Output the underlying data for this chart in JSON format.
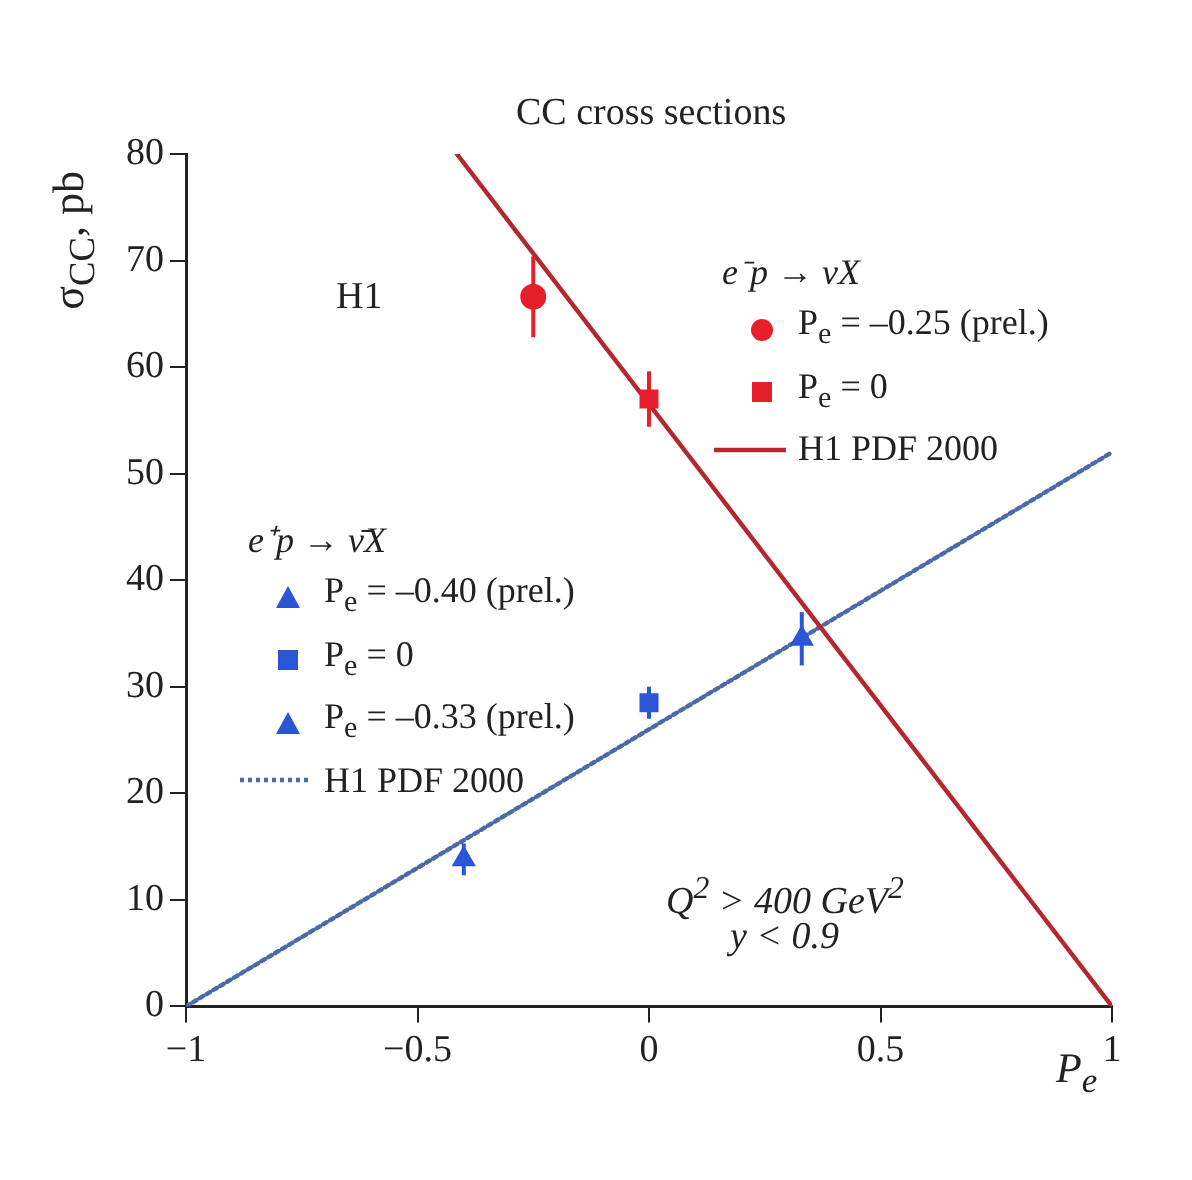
{
  "chart_data": {
    "type": "scatter",
    "title": "CC cross sections",
    "xlabel": "P$_{e}$",
    "ylabel": "σ$_{CC}$, pb",
    "legend_title": [
      "e⁻p → νX",
      "e⁺p → ν̄X"
    ],
    "xlim": [
      -1,
      1
    ],
    "xticks": [
      -1,
      -0.5,
      0,
      0.5,
      1
    ],
    "ylim": [
      0,
      80
    ],
    "yticks": [
      0,
      10,
      20,
      30,
      40,
      50,
      60,
      70,
      80
    ],
    "grid": false,
    "legend": "top right",
    "annotations": [
      "H1",
      "Q$^{2}$ > 400 GeV$^{2}$",
      "y < 0.9"
    ],
    "series": [
      {
        "name": "P$_{e}$ = –0.25 (prel.)",
        "type": "scatter",
        "marker": "circle",
        "color": "#e5202a",
        "x": [
          -0.25
        ],
        "values": [
          66.6
        ],
        "errors": [
          3.8
        ]
      },
      {
        "name": "P$_{e}$ = 0",
        "type": "scatter",
        "marker": "square",
        "color": "#e5202a",
        "x": [
          0
        ],
        "values": [
          57
        ],
        "errors": [
          2.6
        ]
      },
      {
        "name": "H1 PDF 2000",
        "type": "line",
        "marker": "none",
        "line_style": "solid",
        "color": "#b5262e",
        "x": [
          -0.415,
          1
        ],
        "values": [
          80,
          0
        ]
      },
      {
        "name": "P$_{e}$ = –0.40 (prel.)",
        "type": "scatter",
        "marker": "triangle",
        "color": "#2a56d6",
        "x": [
          -0.4
        ],
        "values": [
          13.8
        ],
        "errors": [
          1.5
        ]
      },
      {
        "name": "P$_{e}$ = 0",
        "type": "scatter",
        "marker": "square",
        "color": "#2a56d6",
        "x": [
          0
        ],
        "values": [
          28.5
        ],
        "errors": [
          1.5
        ]
      },
      {
        "name": "P$_{e}$ = –0.33 (prel.)",
        "type": "scatter",
        "marker": "triangle",
        "color": "#2a56d6",
        "x": [
          0.33
        ],
        "values": [
          34.5
        ],
        "errors": [
          2.5
        ]
      },
      {
        "name": "H1 PDF 2000",
        "type": "line",
        "marker": "none",
        "line_style": "dotted",
        "color": "#4a6aa8",
        "x": [
          -1,
          1
        ],
        "values": [
          0,
          52
        ]
      }
    ]
  }
}
